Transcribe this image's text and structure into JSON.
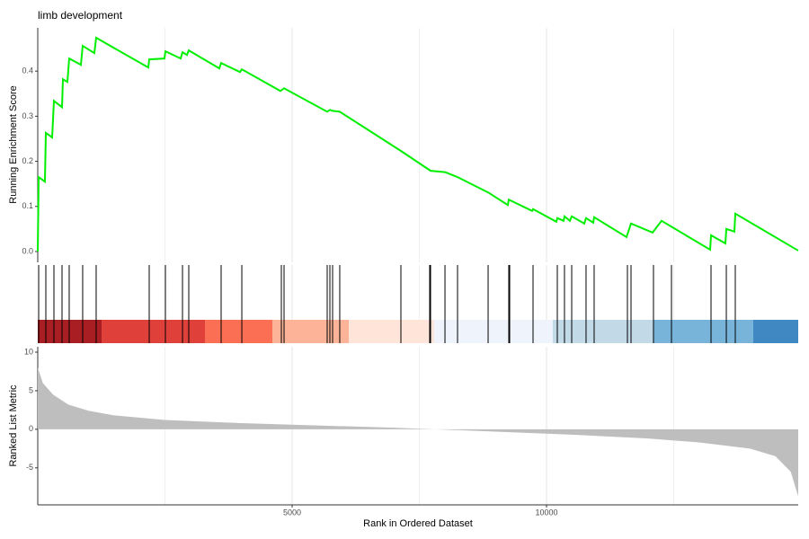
{
  "chart_data": {
    "type": "gsea",
    "title": "limb development",
    "xlabel": "Rank in Ordered Dataset",
    "xlim": [
      0,
      14947
    ],
    "xticks": [
      5000,
      10000
    ],
    "xminor": [
      2500,
      7500,
      12500
    ],
    "running": {
      "ylabel": "Running Enrichment Score",
      "color": "#00ee00",
      "ylim": [
        -0.024,
        0.496
      ],
      "yticks": [
        {
          "value": 0,
          "label": "0.0"
        },
        0.1,
        0.2,
        0.3,
        0.4
      ],
      "x": [
        0,
        18,
        141,
        159,
        283,
        318,
        477,
        495,
        583,
        618,
        848,
        883,
        1113,
        1148,
        2173,
        2191,
        2491,
        2509,
        2809,
        2845,
        2933,
        2968,
        3569,
        3604,
        3975,
        4011,
        4770,
        4841,
        5689,
        5742,
        5795,
        5936,
        7138,
        7721,
        8004,
        8251,
        8852,
        9240,
        9258,
        9717,
        9735,
        10194,
        10212,
        10336,
        10353,
        10459,
        10495,
        10742,
        10777,
        10919,
        10936,
        11572,
        11661,
        12085,
        12261,
        13216,
        13233,
        13516,
        13534,
        13693,
        13710,
        14947
      ],
      "values": [
        0,
        0.165,
        0.155,
        0.263,
        0.253,
        0.334,
        0.32,
        0.382,
        0.376,
        0.428,
        0.414,
        0.456,
        0.44,
        0.474,
        0.408,
        0.426,
        0.428,
        0.444,
        0.428,
        0.442,
        0.436,
        0.446,
        0.406,
        0.418,
        0.398,
        0.404,
        0.356,
        0.362,
        0.31,
        0.314,
        0.312,
        0.31,
        0.223,
        0.179,
        0.176,
        0.165,
        0.131,
        0.103,
        0.115,
        0.09,
        0.094,
        0.066,
        0.074,
        0.068,
        0.078,
        0.068,
        0.078,
        0.062,
        0.074,
        0.064,
        0.076,
        0.032,
        0.062,
        0.042,
        0.068,
        0.004,
        0.036,
        0.018,
        0.05,
        0.044,
        0.084,
        0.002
      ]
    },
    "hits": [
      18,
      159,
      318,
      477,
      618,
      883,
      1148,
      2191,
      2509,
      2845,
      2968,
      3604,
      4011,
      4788,
      4841,
      5689,
      5742,
      5795,
      5936,
      7138,
      7703,
      7721,
      8004,
      8251,
      8852,
      9258,
      9276,
      9735,
      10212,
      10353,
      10495,
      10777,
      10936,
      11590,
      11661,
      12102,
      12456,
      13233,
      13534,
      13710
    ],
    "ranked": {
      "ylabel": "Ranked List Metric",
      "color": "#bebebe",
      "ylim": [
        -9.8,
        10.7
      ],
      "yticks": [
        -5,
        0,
        5,
        10
      ],
      "x": [
        0,
        100,
        300,
        600,
        1000,
        1500,
        2500,
        4000,
        5500,
        7000,
        7800,
        9000,
        10500,
        12000,
        13000,
        14000,
        14500,
        14800,
        14947
      ],
      "values": [
        8,
        6,
        4.5,
        3.2,
        2.4,
        1.8,
        1.2,
        0.8,
        0.5,
        0.2,
        0,
        -0.3,
        -0.7,
        -1.2,
        -1.7,
        -2.5,
        -3.5,
        -5.5,
        -8.7
      ]
    }
  }
}
